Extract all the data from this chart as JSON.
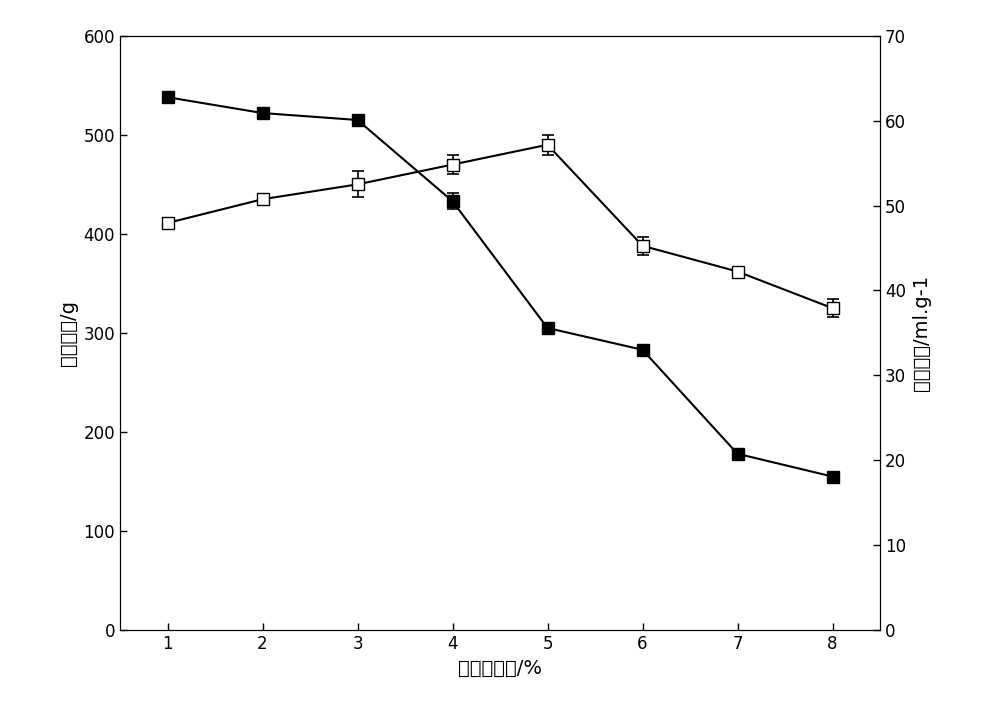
{
  "x": [
    1,
    2,
    3,
    4,
    5,
    6,
    7,
    8
  ],
  "gel_strength": [
    538,
    522,
    515,
    433,
    305,
    283,
    178,
    155
  ],
  "gel_strength_err": [
    0,
    0,
    0,
    8,
    0,
    5,
    5,
    5
  ],
  "intrinsic_viscosity_left": [
    411,
    435,
    450,
    470,
    490,
    388,
    362,
    325
  ],
  "intrinsic_viscosity_err_left": [
    4,
    0,
    13,
    10,
    10,
    9,
    0,
    9
  ],
  "left_ylabel": "凝胶强度/g",
  "right_ylabel": "特性粘度/ml.g-1",
  "xlabel": "相对含水量/%",
  "left_ylim": [
    0,
    600
  ],
  "right_ylim": [
    0,
    70
  ],
  "left_yticks": [
    0,
    100,
    200,
    300,
    400,
    500,
    600
  ],
  "right_yticks": [
    0,
    10,
    20,
    30,
    40,
    50,
    60,
    70
  ],
  "xticks": [
    1,
    2,
    3,
    4,
    5,
    6,
    7,
    8
  ],
  "line_color": "#000000",
  "background_color": "#ffffff",
  "font_size_label": 14,
  "font_size_tick": 12,
  "marker_size": 8,
  "line_width": 1.5
}
